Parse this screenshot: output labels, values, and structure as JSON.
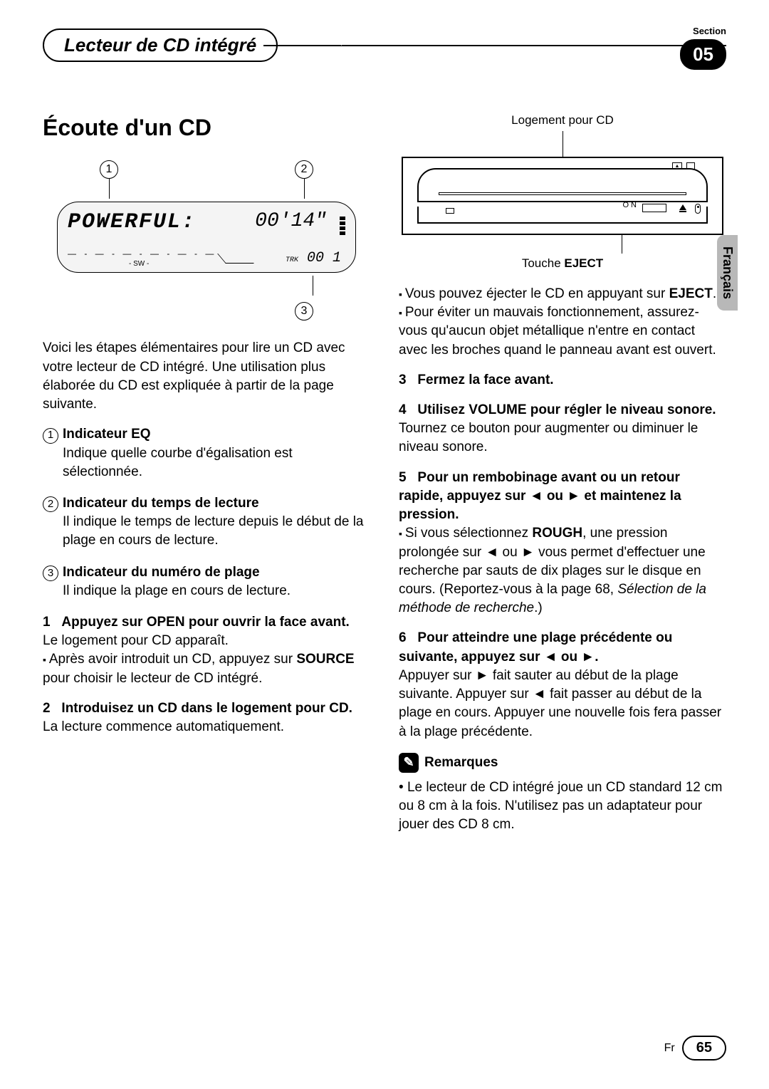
{
  "header": {
    "chapter_title": "Lecteur de CD intégré",
    "section_label": "Section",
    "section_number": "05"
  },
  "side_tab": "Français",
  "left": {
    "h1": "Écoute d'un CD",
    "lcd": {
      "main_text": "POWERFUL:",
      "time": "00'14\"",
      "trk_label": "TRK",
      "trk_value": "00 1",
      "sw": "- SW -"
    },
    "callouts": {
      "c1": "1",
      "c2": "2",
      "c3": "3"
    },
    "intro": "Voici les étapes élémentaires pour lire un CD avec votre lecteur de CD intégré. Une utilisation plus élaborée du CD est expliquée à partir de la page suivante.",
    "indicators": [
      {
        "num": "1",
        "title": "Indicateur EQ",
        "desc": "Indique quelle courbe d'égalisation est sélectionnée."
      },
      {
        "num": "2",
        "title": "Indicateur du temps de lecture",
        "desc": "Il indique le temps de lecture depuis le début de la plage en cours de lecture."
      },
      {
        "num": "3",
        "title": "Indicateur du numéro de plage",
        "desc": "Il indique la plage en cours de lecture."
      }
    ],
    "step1": {
      "num": "1",
      "title": "Appuyez sur OPEN pour ouvrir la face avant.",
      "line1": "Le logement pour CD apparaît.",
      "bullet_pre": "Après avoir introduit un CD, appuyez sur ",
      "bullet_bold": "SOURCE",
      "bullet_post": " pour choisir le lecteur de CD intégré."
    },
    "step2": {
      "num": "2",
      "title": "Introduisez un CD dans le logement pour CD.",
      "line1": "La lecture commence automatiquement."
    }
  },
  "right": {
    "cd_slot_label": "Logement pour CD",
    "eject_caption_pre": "Touche ",
    "eject_caption_bold": "EJECT",
    "bullet1_pre": "Vous pouvez éjecter le CD en appuyant sur ",
    "bullet1_bold": "EJECT",
    "bullet1_post": ".",
    "bullet2": "Pour éviter un mauvais fonctionnement, assurez-vous qu'aucun objet métallique n'entre en contact avec les broches quand le panneau avant est ouvert.",
    "step3": {
      "num": "3",
      "title": "Fermez la face avant."
    },
    "step4": {
      "num": "4",
      "title": "Utilisez VOLUME pour régler le niveau sonore.",
      "line1": "Tournez ce bouton pour augmenter ou diminuer le niveau sonore."
    },
    "step5": {
      "num": "5",
      "title_pre": "Pour un rembobinage avant ou un retour rapide, appuyez sur ",
      "title_mid": " ou ",
      "title_post": " et maintenez la pression.",
      "bullet_pre": "Si vous sélectionnez ",
      "bullet_bold": "ROUGH",
      "bullet_mid1": ", une pression prolongée sur ",
      "bullet_mid2": " ou ",
      "bullet_mid3": " vous permet d'effectuer une recherche par sauts de dix plages sur le disque en cours. (Reportez-vous à la page 68, ",
      "bullet_italic": "Sélection de la méthode de recherche",
      "bullet_post": ".)"
    },
    "step6": {
      "num": "6",
      "title_pre": "Pour atteindre une plage précédente ou suivante, appuyez sur ",
      "title_mid": " ou ",
      "title_post": ".",
      "line_pre": "Appuyer sur ",
      "line_mid1": " fait sauter au début de la plage suivante. Appuyer sur ",
      "line_mid2": " fait passer au début de la plage en cours. Appuyer une nouvelle fois fera passer à la plage précédente."
    },
    "notes_title": "Remarques",
    "note1": "Le lecteur de CD intégré joue un CD standard 12 cm ou 8 cm à la fois. N'utilisez pas un adaptateur pour jouer des CD 8 cm."
  },
  "footer": {
    "lang": "Fr",
    "page": "65"
  }
}
